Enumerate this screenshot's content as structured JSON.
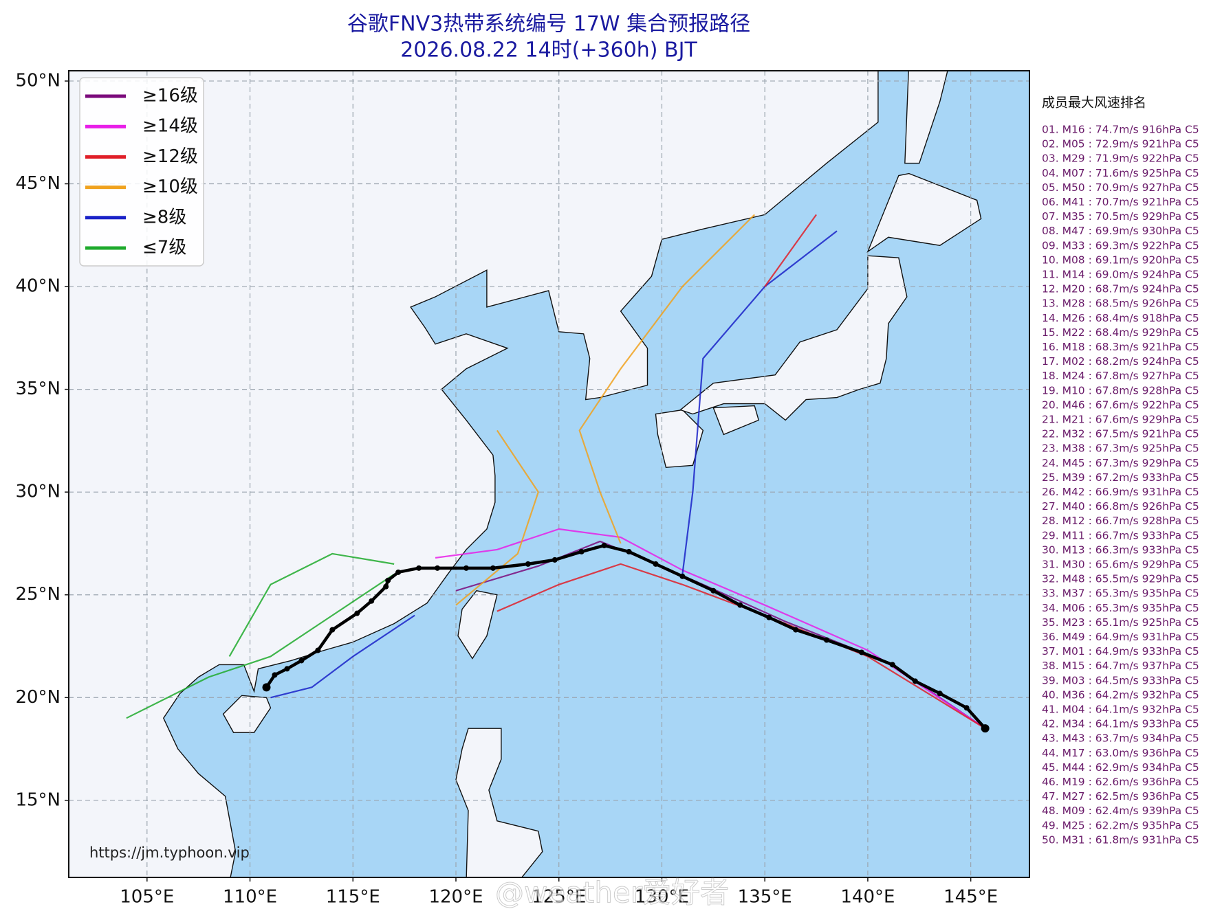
{
  "chart_data": {
    "type": "map",
    "title": "谷歌FNV3热带系统编号 17W 集合预报路径",
    "subtitle": "2026.08.22 14时(+360h) BJT",
    "xlim": [
      101.2,
      147.85
    ],
    "ylim": [
      11.25,
      50.5
    ],
    "xticks": [
      {
        "value": 105,
        "label": "105°E"
      },
      {
        "value": 110,
        "label": "110°E"
      },
      {
        "value": 115,
        "label": "115°E"
      },
      {
        "value": 120,
        "label": "120°E"
      },
      {
        "value": 125,
        "label": "125°E"
      },
      {
        "value": 130,
        "label": "130°E"
      },
      {
        "value": 135,
        "label": "135°E"
      },
      {
        "value": 140,
        "label": "140°E"
      },
      {
        "value": 145,
        "label": "145°E"
      }
    ],
    "yticks": [
      {
        "value": 15,
        "label": "15°N"
      },
      {
        "value": 20,
        "label": "20°N"
      },
      {
        "value": 25,
        "label": "25°N"
      },
      {
        "value": 30,
        "label": "30°N"
      },
      {
        "value": 35,
        "label": "35°N"
      },
      {
        "value": 40,
        "label": "40°N"
      },
      {
        "value": 45,
        "label": "45°N"
      },
      {
        "value": 50,
        "label": "50°N"
      }
    ],
    "grid": true,
    "legend": [
      {
        "label": "≥16级",
        "color": "#7b0a7b"
      },
      {
        "label": "≥14级",
        "color": "#e81ee8"
      },
      {
        "label": "≥12级",
        "color": "#e01e28"
      },
      {
        "label": "≥10级",
        "color": "#f0a21e"
      },
      {
        "label": "≥8级",
        "color": "#1a22c8"
      },
      {
        "label": "≤7级",
        "color": "#1eaa2c"
      }
    ],
    "tracks": [
      {
        "color": "#7b0a7b",
        "lon": [
          145.7,
          141,
          136,
          132,
          129,
          127,
          124,
          120
        ],
        "lat": [
          18.5,
          21.7,
          23.7,
          25.5,
          26.8,
          27.6,
          26.4,
          25.2
        ]
      },
      {
        "color": "#e81ee8",
        "lon": [
          145.7,
          140,
          135,
          131,
          128,
          125,
          122,
          119
        ],
        "lat": [
          18.5,
          22.3,
          24.5,
          26.2,
          27.8,
          28.2,
          27.2,
          26.8
        ]
      },
      {
        "color": "#e01e28",
        "lon": [
          145.7,
          140,
          135,
          131,
          128,
          125,
          122
        ],
        "lat": [
          18.5,
          22,
          24,
          25.5,
          26.5,
          25.5,
          24.2
        ]
      },
      {
        "color": "#f0a21e",
        "lon": [
          128,
          127,
          126,
          128,
          131,
          134.5
        ],
        "lat": [
          27.5,
          30,
          33,
          36,
          40,
          43.5
        ]
      },
      {
        "color": "#1a22c8",
        "lon": [
          131,
          131.5,
          132,
          135,
          138.5
        ],
        "lat": [
          26,
          30,
          36.5,
          40,
          42.7
        ]
      },
      {
        "color": "#1eaa2c",
        "lon": [
          117,
          114,
          111,
          108,
          104
        ],
        "lat": [
          26,
          24,
          22,
          21,
          19
        ]
      },
      {
        "color": "#1eaa2c",
        "lon": [
          117,
          114,
          111,
          109
        ],
        "lat": [
          26.5,
          27,
          25.5,
          22
        ]
      },
      {
        "color": "#1a22c8",
        "lon": [
          118,
          115,
          113,
          111
        ],
        "lat": [
          24,
          22,
          20.5,
          20
        ]
      },
      {
        "color": "#e01e28",
        "lon": [
          135,
          137.5
        ],
        "lat": [
          40,
          43.5
        ]
      },
      {
        "color": "#f0a21e",
        "lon": [
          120,
          123,
          124,
          122
        ],
        "lat": [
          24.5,
          27,
          30,
          33
        ]
      }
    ],
    "mean_track": {
      "color": "#000000",
      "lon": [
        145.7,
        144.8,
        143.5,
        142.3,
        141.2,
        139.7,
        138.0,
        136.5,
        135.2,
        133.8,
        132.5,
        131.0,
        129.7,
        128.4,
        127.2,
        126.1,
        124.8,
        123.5,
        121.8,
        120.5,
        119.1,
        118.2,
        117.2,
        116.7,
        116.6,
        115.9,
        115.2,
        114.0,
        113.3,
        112.5,
        111.8,
        111.2,
        110.8
      ],
      "lat": [
        18.5,
        19.5,
        20.2,
        20.8,
        21.6,
        22.2,
        22.8,
        23.3,
        23.9,
        24.5,
        25.2,
        25.9,
        26.5,
        27.1,
        27.4,
        27.1,
        26.7,
        26.5,
        26.3,
        26.3,
        26.3,
        26.3,
        26.1,
        25.7,
        25.4,
        24.7,
        24.1,
        23.3,
        22.3,
        21.8,
        21.4,
        21.1,
        20.5
      ]
    },
    "source": "https://jm.typhoon.vip",
    "watermark": "@weather爱好者",
    "ranking_title": "成员最大风速排名",
    "ranking": [
      "01. M16 : 74.7m/s 916hPa C5",
      "02. M05 : 72.9m/s 921hPa C5",
      "03. M29 : 71.9m/s 922hPa C5",
      "04. M07 : 71.6m/s 925hPa C5",
      "05. M50 : 70.9m/s 927hPa C5",
      "06. M41 : 70.7m/s 921hPa C5",
      "07. M35 : 70.5m/s 929hPa C5",
      "08. M47 : 69.9m/s 930hPa C5",
      "09. M33 : 69.3m/s 922hPa C5",
      "10. M08 : 69.1m/s 920hPa C5",
      "11. M14 : 69.0m/s 924hPa C5",
      "12. M20 : 68.7m/s 924hPa C5",
      "13. M28 : 68.5m/s 926hPa C5",
      "14. M26 : 68.4m/s 918hPa C5",
      "15. M22 : 68.4m/s 929hPa C5",
      "16. M18 : 68.3m/s 921hPa C5",
      "17. M02 : 68.2m/s 924hPa C5",
      "18. M24 : 67.8m/s 927hPa C5",
      "19. M10 : 67.8m/s 928hPa C5",
      "20. M46 : 67.6m/s 922hPa C5",
      "21. M21 : 67.6m/s 929hPa C5",
      "22. M32 : 67.5m/s 921hPa C5",
      "23. M38 : 67.3m/s 925hPa C5",
      "24. M45 : 67.3m/s 929hPa C5",
      "25. M39 : 67.2m/s 933hPa C5",
      "26. M42 : 66.9m/s 931hPa C5",
      "27. M40 : 66.8m/s 926hPa C5",
      "28. M12 : 66.7m/s 928hPa C5",
      "29. M11 : 66.7m/s 933hPa C5",
      "30. M13 : 66.3m/s 933hPa C5",
      "31. M30 : 65.6m/s 929hPa C5",
      "32. M48 : 65.5m/s 929hPa C5",
      "33. M37 : 65.3m/s 935hPa C5",
      "34. M06 : 65.3m/s 935hPa C5",
      "35. M23 : 65.1m/s 925hPa C5",
      "36. M49 : 64.9m/s 931hPa C5",
      "37. M01 : 64.9m/s 933hPa C5",
      "38. M15 : 64.7m/s 937hPa C5",
      "39. M03 : 64.5m/s 933hPa C5",
      "40. M36 : 64.2m/s 932hPa C5",
      "41. M04 : 64.1m/s 932hPa C5",
      "42. M34 : 64.1m/s 933hPa C5",
      "43. M43 : 63.7m/s 934hPa C5",
      "44. M17 : 63.0m/s 936hPa C5",
      "45. M44 : 62.9m/s 934hPa C5",
      "46. M19 : 62.6m/s 936hPa C5",
      "47. M27 : 62.5m/s 936hPa C5",
      "48. M09 : 62.4m/s 939hPa C5",
      "49. M25 : 62.2m/s 935hPa C5",
      "50. M31 : 61.8m/s 931hPa C5"
    ]
  }
}
